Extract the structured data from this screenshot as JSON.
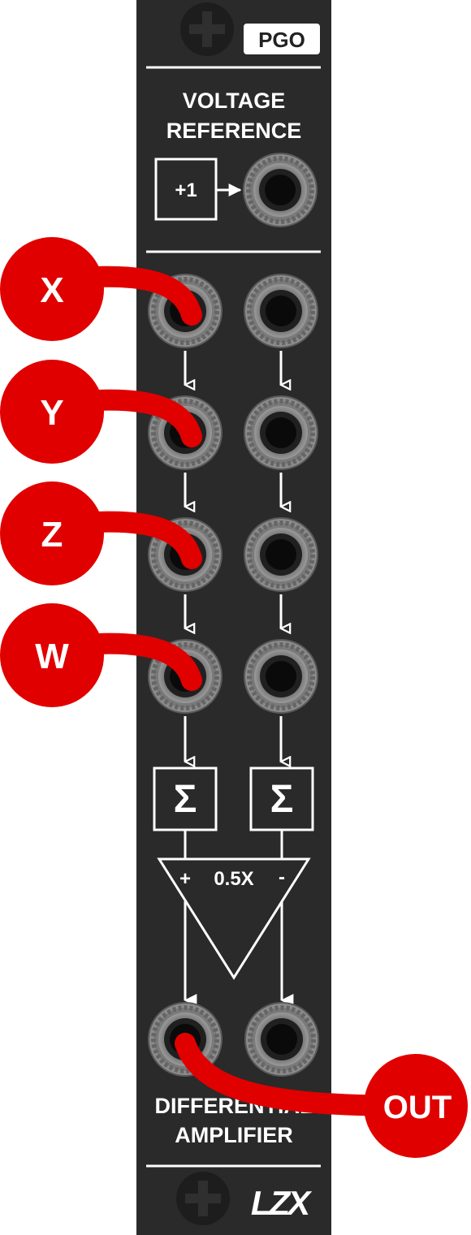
{
  "module": {
    "name": "PGO",
    "brand": "LZX",
    "panel_color": "#2a2a2a",
    "line_color": "#ffffff",
    "jack_ring_color": "#8a8a8a",
    "cable_color": "#e00000"
  },
  "voltage_reference": {
    "title_line1": "VOLTAGE",
    "title_line2": "REFERENCE",
    "value_label": "+1"
  },
  "inputs": [
    {
      "label": "X",
      "patched": true
    },
    {
      "label": "Y",
      "patched": true
    },
    {
      "label": "Z",
      "patched": true
    },
    {
      "label": "W",
      "patched": true
    }
  ],
  "amplifier": {
    "sum_symbol": "Σ",
    "gain_label": "0.5X",
    "plus_label": "+",
    "minus_label": "-",
    "title_line1": "DIFFERENTIAL",
    "title_line2": "AMPLIFIER"
  },
  "output": {
    "label": "OUT",
    "patched": true
  },
  "icons": [
    "screw-icon",
    "arrow-down-icon",
    "sigma-icon",
    "triangle-amp-icon"
  ]
}
